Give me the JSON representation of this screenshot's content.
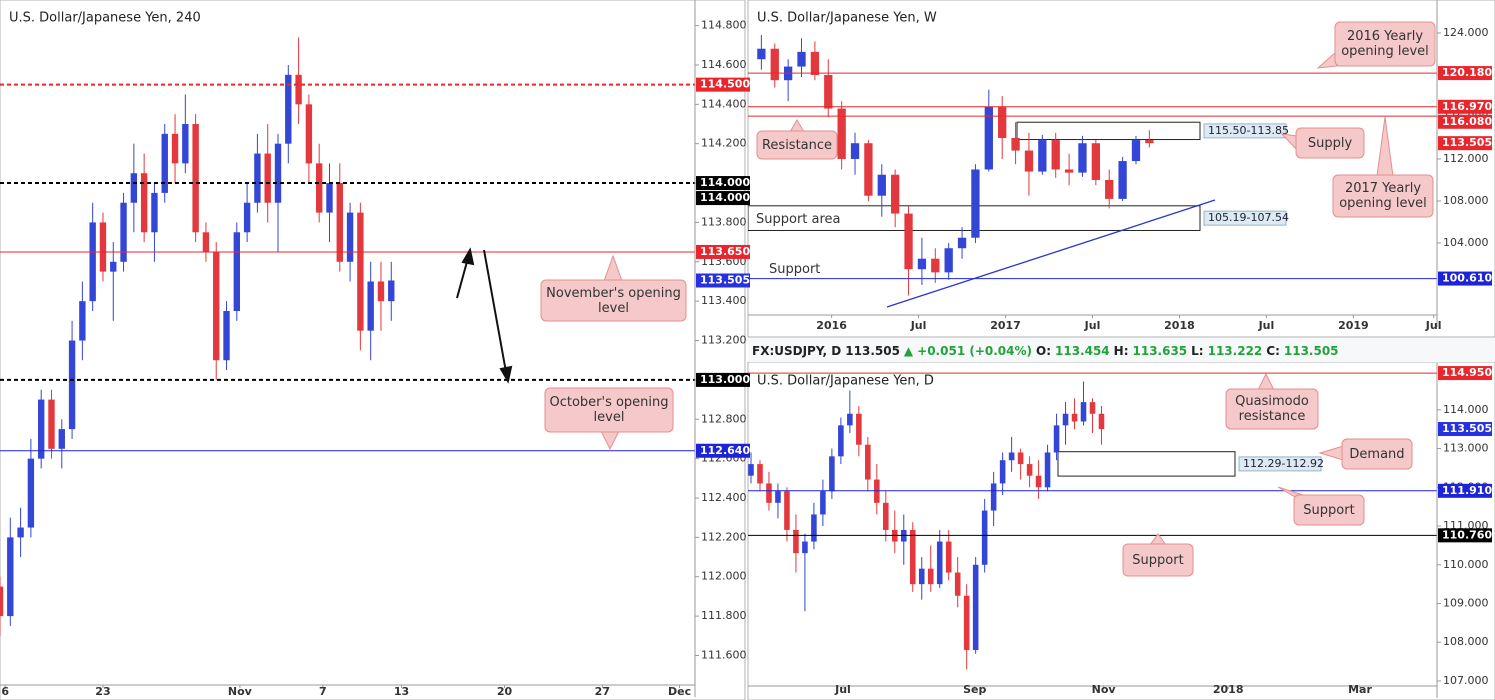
{
  "chart_data": [
    {
      "type": "candlestick",
      "title": "U.S. Dollar/Japanese Yen, 240",
      "xlim": [
        0,
        135
      ],
      "ylim": [
        111.45,
        114.93
      ],
      "xticks": [
        {
          "value": 1,
          "label": "6"
        },
        {
          "value": 20,
          "label": "23"
        },
        {
          "value": 46.6,
          "label": "Nov"
        },
        {
          "value": 62.7,
          "label": "7"
        },
        {
          "value": 78,
          "label": "13"
        },
        {
          "value": 98,
          "label": "20"
        },
        {
          "value": 117,
          "label": "27"
        },
        {
          "value": 132,
          "label": "Dec"
        }
      ],
      "yticks": [
        {
          "value": 111.6,
          "label": "111.600"
        },
        {
          "value": 111.8,
          "label": "111.800"
        },
        {
          "value": 112,
          "label": "112.000"
        },
        {
          "value": 112.2,
          "label": "112.200"
        },
        {
          "value": 112.4,
          "label": "112.400"
        },
        {
          "value": 112.6,
          "label": "112.600"
        },
        {
          "value": 112.8,
          "label": "112.800"
        },
        {
          "value": 113,
          "label": "113.000"
        },
        {
          "value": 113.2,
          "label": "113.200"
        },
        {
          "value": 113.4,
          "label": "113.400"
        },
        {
          "value": 113.6,
          "label": "113.600"
        },
        {
          "value": 113.8,
          "label": "113.800"
        },
        {
          "value": 114,
          "label": "114.000"
        },
        {
          "value": 114.2,
          "label": "114.200"
        },
        {
          "value": 114.4,
          "label": "114.400"
        },
        {
          "value": 114.6,
          "label": "114.600"
        },
        {
          "value": 114.8,
          "label": "114.800"
        }
      ],
      "up_color": "#3346d6",
      "down_color": "#e3383d",
      "candles": {
        "x": [
          0,
          2,
          4,
          6,
          8,
          10,
          12,
          14,
          16,
          18,
          20,
          22,
          24,
          26,
          28,
          30,
          32,
          34,
          36,
          38,
          40,
          42,
          44,
          46,
          48,
          50,
          52,
          54,
          56,
          58,
          60,
          62,
          64,
          66,
          68,
          70,
          72,
          74,
          76
        ],
        "open": [
          111.95,
          111.8,
          112.2,
          112.25,
          112.6,
          112.9,
          112.65,
          112.75,
          113.2,
          113.4,
          113.8,
          113.55,
          113.6,
          113.9,
          114.05,
          113.75,
          113.95,
          114.25,
          114.1,
          114.3,
          113.75,
          113.65,
          113.1,
          113.35,
          113.75,
          113.9,
          114.15,
          113.9,
          114.2,
          114.55,
          114.4,
          114.1,
          113.85,
          114.0,
          113.6,
          113.85,
          113.25,
          113.5,
          113.4
        ],
        "high": [
          112.0,
          112.3,
          112.35,
          112.7,
          112.95,
          112.95,
          112.8,
          113.3,
          113.5,
          113.9,
          113.85,
          113.7,
          113.95,
          114.2,
          114.15,
          114.0,
          114.3,
          114.35,
          114.45,
          114.35,
          113.8,
          113.7,
          113.4,
          113.8,
          114.0,
          114.25,
          114.3,
          114.25,
          114.6,
          114.74,
          114.45,
          114.2,
          114.1,
          114.1,
          113.9,
          113.9,
          113.6,
          113.6,
          113.6
        ],
        "low": [
          111.7,
          111.75,
          112.1,
          112.2,
          112.55,
          112.6,
          112.55,
          112.7,
          113.1,
          113.35,
          113.5,
          113.3,
          113.55,
          113.75,
          113.7,
          113.6,
          113.9,
          114.0,
          114.05,
          113.7,
          113.6,
          113.0,
          113.05,
          113.3,
          113.7,
          113.85,
          113.8,
          113.65,
          114.1,
          114.3,
          114.0,
          113.8,
          113.7,
          113.55,
          113.5,
          113.15,
          113.1,
          113.25,
          113.3
        ],
        "close": [
          111.8,
          112.2,
          112.25,
          112.6,
          112.9,
          112.65,
          112.75,
          113.2,
          113.4,
          113.8,
          113.55,
          113.6,
          113.9,
          114.05,
          113.75,
          113.95,
          114.25,
          114.1,
          114.3,
          113.75,
          113.65,
          113.1,
          113.35,
          113.75,
          113.9,
          114.15,
          113.9,
          114.2,
          114.55,
          114.4,
          114.1,
          113.85,
          114.0,
          113.6,
          113.85,
          113.25,
          113.5,
          113.4,
          113.505
        ]
      },
      "levels": [
        {
          "value": 114.5,
          "label": "114.500",
          "color": "#e8262b",
          "dash": true
        },
        {
          "value": 114,
          "label": "114.000",
          "color": "#000000",
          "dash": true
        },
        {
          "value": 114,
          "label": "114.000",
          "color": "#000000",
          "line": false
        },
        {
          "value": 113.65,
          "label": "113.650",
          "color": "#e8262b"
        },
        {
          "value": 113.505,
          "label": "113.505",
          "color": "#2632e0",
          "line": false
        },
        {
          "value": 113,
          "label": "113.000",
          "color": "#000000",
          "dash": true
        },
        {
          "value": 112.64,
          "label": "112.640",
          "color": "#1d24d6"
        }
      ],
      "zones": [],
      "annotations": [
        "November's opening level",
        "October's opening level"
      ]
    },
    {
      "type": "candlestick",
      "title": "U.S. Dollar/Japanese Yen, W",
      "xlim": [
        0,
        206
      ],
      "ylim": [
        97.14,
        127.14
      ],
      "xticks": [
        {
          "value": 25,
          "label": "2016"
        },
        {
          "value": 51,
          "label": "Jul"
        },
        {
          "value": 77,
          "label": "2017"
        },
        {
          "value": 103,
          "label": "Jul"
        },
        {
          "value": 129,
          "label": "2018"
        },
        {
          "value": 155,
          "label": "Jul"
        },
        {
          "value": 181,
          "label": "2019"
        },
        {
          "value": 205,
          "label": "Jul"
        }
      ],
      "yticks": [
        {
          "value": 104,
          "label": "104.000"
        },
        {
          "value": 108,
          "label": "108.000"
        },
        {
          "value": 112,
          "label": "112.000"
        },
        {
          "value": 116,
          "label": "116.000"
        },
        {
          "value": 120,
          "label": "120.000"
        },
        {
          "value": 124,
          "label": "124.000"
        }
      ],
      "up_color": "#3346d6",
      "down_color": "#e3383d",
      "candles": {
        "x": [
          4,
          8,
          12,
          16,
          20,
          24,
          28,
          32,
          36,
          40,
          44,
          48,
          52,
          56,
          60,
          64,
          68,
          72,
          76,
          80,
          84,
          88,
          92,
          96,
          100,
          104,
          108,
          112,
          116,
          120
        ],
        "open": [
          121.5,
          122.5,
          119.5,
          120.8,
          122.2,
          120,
          116.8,
          112,
          113.5,
          108.5,
          110.5,
          106.8,
          101.5,
          102.5,
          101.2,
          103.5,
          104.5,
          111,
          117,
          114,
          112.8,
          110.8,
          113.8,
          111,
          110.7,
          113.5,
          110,
          108.2,
          111.8,
          113.8
        ],
        "high": [
          123.8,
          123,
          121.5,
          123.5,
          123.2,
          121.5,
          117.5,
          114.5,
          113.8,
          111.5,
          111,
          107.5,
          104.5,
          103.5,
          104,
          105.5,
          111.5,
          118.6,
          118,
          115.5,
          114.5,
          114.3,
          114.5,
          112.5,
          114.2,
          113.8,
          111,
          112.2,
          114.2,
          114.74
        ],
        "low": [
          120.5,
          118.8,
          117.5,
          119.8,
          119.5,
          116,
          111,
          110.5,
          108,
          106.5,
          105.5,
          99,
          100,
          100.2,
          100.5,
          102.5,
          104,
          110.8,
          112,
          111.5,
          108.5,
          110.5,
          110.2,
          109.5,
          110.3,
          109.5,
          107.3,
          108,
          111.5,
          113.1
        ],
        "close": [
          122.5,
          119.5,
          120.8,
          122.2,
          120,
          116.8,
          112,
          113.5,
          108.5,
          110.5,
          106.8,
          101.5,
          102.5,
          101.2,
          103.5,
          104.5,
          111,
          117,
          114,
          112.8,
          110.8,
          113.8,
          111,
          110.7,
          113.5,
          110,
          108.2,
          111.8,
          113.8,
          113.505
        ]
      },
      "levels": [
        {
          "value": 120.18,
          "label": "120.180",
          "color": "#e8262b"
        },
        {
          "value": 116.97,
          "label": "116.970",
          "color": "#e8262b"
        },
        {
          "value": 116.08,
          "label": "116.080",
          "color": "#e8262b"
        },
        {
          "value": 113.505,
          "label": "113.505",
          "color": "#e8262b",
          "line": false
        },
        {
          "value": 100.61,
          "label": "100.610",
          "color": "#1d24d6"
        }
      ],
      "zones": [
        {
          "top": 115.5,
          "bottom": 113.85,
          "label": "115.50-113.85"
        },
        {
          "top": 107.54,
          "bottom": 105.19,
          "label": "105.19-107.54"
        }
      ],
      "annotations": [
        "2016 Yearly opening level",
        "Resistance",
        "Supply",
        "2017 Yearly opening level",
        "Support area",
        "Support"
      ]
    },
    {
      "type": "candlestick",
      "title": "U.S. Dollar/Japanese Yen, D",
      "xlim": [
        0,
        230
      ],
      "ylim": [
        106.87,
        115.21
      ],
      "xticks": [
        {
          "value": 31.7,
          "label": "Jul"
        },
        {
          "value": 75.7,
          "label": "Sep"
        },
        {
          "value": 118.7,
          "label": "Nov"
        },
        {
          "value": 160.3,
          "label": "2018"
        },
        {
          "value": 204.3,
          "label": "Mar"
        }
      ],
      "yticks": [
        {
          "value": 107,
          "label": "107.000"
        },
        {
          "value": 108,
          "label": "108.000"
        },
        {
          "value": 109,
          "label": "109.000"
        },
        {
          "value": 110,
          "label": "110.000"
        },
        {
          "value": 111,
          "label": "111.000"
        },
        {
          "value": 112,
          "label": "112.000"
        },
        {
          "value": 113,
          "label": "113.000"
        },
        {
          "value": 114,
          "label": "114.000"
        }
      ],
      "up_color": "#3346d6",
      "down_color": "#e3383d",
      "candles": {
        "x": [
          1,
          4,
          7,
          10,
          13,
          16,
          19,
          22,
          25,
          28,
          31,
          34,
          37,
          40,
          43,
          46,
          49,
          52,
          55,
          58,
          61,
          64,
          67,
          70,
          73,
          76,
          79,
          82,
          85,
          88,
          91,
          94,
          97,
          100,
          103,
          106,
          109,
          112,
          115,
          118
        ],
        "open": [
          112.3,
          112.6,
          112.1,
          111.6,
          111.9,
          110.9,
          110.3,
          110.6,
          111.3,
          111.9,
          112.8,
          113.6,
          113.9,
          113.1,
          112.2,
          111.6,
          110.9,
          110.6,
          110.9,
          109.5,
          109.9,
          109.5,
          110.6,
          109.8,
          109.2,
          107.8,
          110.0,
          111.4,
          112.1,
          112.7,
          112.9,
          112.6,
          112.3,
          112.0,
          112.9,
          113.6,
          113.9,
          113.7,
          114.2,
          113.9
        ],
        "high": [
          112.9,
          112.7,
          112.4,
          112.1,
          112.0,
          111.3,
          110.8,
          111.6,
          112.2,
          113.0,
          113.8,
          114.5,
          114.1,
          113.3,
          112.6,
          111.9,
          111.4,
          111.3,
          111.1,
          110.2,
          110.5,
          110.9,
          110.9,
          110.2,
          109.5,
          110.2,
          111.7,
          112.4,
          112.9,
          113.3,
          113.0,
          112.8,
          112.7,
          113.1,
          113.9,
          114.2,
          114.3,
          114.73,
          114.3,
          114.1
        ],
        "low": [
          112.1,
          111.9,
          111.4,
          111.2,
          110.6,
          109.8,
          108.8,
          110.4,
          111.0,
          111.7,
          112.6,
          113.4,
          112.8,
          111.9,
          111.3,
          110.6,
          110.3,
          110.0,
          109.3,
          109.1,
          109.3,
          109.4,
          109.6,
          108.9,
          107.3,
          107.7,
          109.8,
          111.0,
          111.8,
          112.4,
          112.2,
          112.0,
          111.7,
          111.9,
          112.7,
          113.1,
          113.5,
          113.6,
          113.4,
          113.1
        ],
        "close": [
          112.6,
          112.1,
          111.6,
          111.9,
          110.9,
          110.3,
          110.6,
          111.3,
          111.9,
          112.8,
          113.6,
          113.9,
          113.1,
          112.2,
          111.6,
          110.9,
          110.6,
          110.9,
          109.5,
          109.9,
          109.5,
          110.6,
          109.8,
          109.2,
          107.8,
          110.0,
          111.4,
          112.1,
          112.7,
          112.9,
          112.6,
          112.3,
          112.0,
          112.9,
          113.6,
          113.9,
          113.7,
          114.2,
          113.9,
          113.505
        ]
      },
      "levels": [
        {
          "value": 114.95,
          "label": "114.950",
          "color": "#e8262b"
        },
        {
          "value": 113.505,
          "label": "113.505",
          "color": "#2632e0",
          "line": false
        },
        {
          "value": 111.91,
          "label": "111.910",
          "color": "#1d24d6"
        },
        {
          "value": 110.76,
          "label": "110.760",
          "color": "#000000"
        }
      ],
      "zones": [
        {
          "top": 112.92,
          "bottom": 112.29,
          "label": "112.29-112.92"
        }
      ],
      "annotations": [
        "Quasimodo resistance",
        "Demand",
        "Support",
        "Support"
      ]
    }
  ],
  "info": {
    "symbol": "FX:USDJPY, D",
    "last": 113.505,
    "arrow": "▲",
    "change": "+0.051 (+0.04%)",
    "open_label": "O:",
    "open": 113.454,
    "high_label": "H:",
    "high": 113.635,
    "low_label": "L:",
    "low": 113.222,
    "close_label": "C:",
    "close": 113.505
  }
}
